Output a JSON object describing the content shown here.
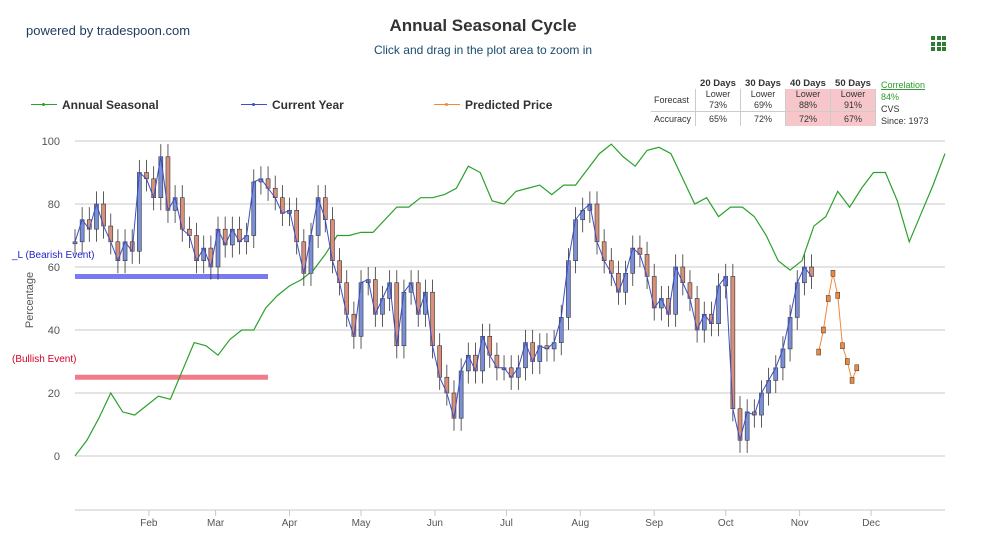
{
  "header": {
    "brand": "powered by tradespoon.com",
    "title": "Annual Seasonal Cycle",
    "subtitle": "Click and drag in the plot area to zoom in"
  },
  "legend": {
    "annual": "Annual Seasonal",
    "current": "Current Year",
    "predicted": "Predicted Price"
  },
  "stats": {
    "headers": [
      "20 Days",
      "30 Days",
      "40 Days",
      "50 Days"
    ],
    "forecast_label": "Forecast",
    "accuracy_label": "Accuracy",
    "forecast": [
      {
        "dir": "Lower",
        "pct": "73%"
      },
      {
        "dir": "Lower",
        "pct": "69%"
      },
      {
        "dir": "Lower",
        "pct": "88%"
      },
      {
        "dir": "Lower",
        "pct": "91%"
      }
    ],
    "accuracy": [
      "65%",
      "72%",
      "72%",
      "67%"
    ],
    "highlight": [
      false,
      false,
      true,
      true
    ]
  },
  "correlation": {
    "label": "Correlation",
    "value": "84%",
    "ticker": "CVS",
    "since": "Since: 1973"
  },
  "events": {
    "bearish": "_L (Bearish Event)",
    "bullish": "(Bullish Event)"
  },
  "colors": {
    "annual": "#2ca02c",
    "current": "#3b4fc4",
    "predicted": "#f0883a",
    "bearish": "#7a7af0",
    "bullish": "#f27a8a",
    "candle_up": "#7a8fd8",
    "candle_down": "#d9907a"
  },
  "chart_data": {
    "type": "line",
    "ylabel": "Percentage",
    "ylim": [
      -15,
      100
    ],
    "yticks": [
      0,
      20,
      40,
      60,
      80,
      100
    ],
    "x_range": [
      0,
      365
    ],
    "month_ticks": [
      {
        "label": "Feb",
        "day": 31
      },
      {
        "label": "Mar",
        "day": 59
      },
      {
        "label": "Apr",
        "day": 90
      },
      {
        "label": "May",
        "day": 120
      },
      {
        "label": "Jun",
        "day": 151
      },
      {
        "label": "Jul",
        "day": 181
      },
      {
        "label": "Aug",
        "day": 212
      },
      {
        "label": "Sep",
        "day": 243
      },
      {
        "label": "Oct",
        "day": 273
      },
      {
        "label": "Nov",
        "day": 304
      },
      {
        "label": "Dec",
        "day": 334
      }
    ],
    "annual_seasonal": {
      "x": [
        0,
        5,
        10,
        15,
        20,
        25,
        30,
        35,
        40,
        45,
        50,
        55,
        60,
        65,
        70,
        75,
        80,
        85,
        90,
        95,
        100,
        105,
        110,
        115,
        120,
        125,
        130,
        135,
        140,
        145,
        150,
        155,
        160,
        165,
        170,
        175,
        180,
        185,
        190,
        195,
        200,
        205,
        210,
        215,
        220,
        225,
        230,
        235,
        240,
        245,
        250,
        255,
        260,
        265,
        270,
        275,
        280,
        285,
        290,
        295,
        300,
        305,
        310,
        315,
        320,
        325,
        330,
        335,
        340,
        345,
        350,
        355,
        360,
        365
      ],
      "y": [
        0,
        5,
        12,
        20,
        14,
        13,
        16,
        19,
        18,
        27,
        36,
        35,
        32,
        37,
        40,
        40,
        47,
        51,
        54,
        56,
        59,
        64,
        70,
        70,
        71,
        71,
        75,
        79,
        79,
        82,
        82,
        83,
        85,
        92,
        90,
        81,
        80,
        84,
        85,
        86,
        83,
        86,
        86,
        91,
        96,
        99,
        95,
        92,
        97,
        98,
        96,
        88,
        80,
        82,
        76,
        79,
        79,
        76,
        70,
        62,
        59,
        62,
        73,
        76,
        84,
        79,
        85,
        90,
        90,
        81,
        68,
        77,
        86,
        96
      ]
    },
    "current_year": {
      "x": [
        0,
        3,
        6,
        9,
        12,
        15,
        18,
        21,
        24,
        27,
        30,
        33,
        36,
        39,
        42,
        45,
        48,
        51,
        54,
        57,
        60,
        63,
        66,
        69,
        72,
        75,
        78,
        81,
        84,
        87,
        90,
        93,
        96,
        99,
        102,
        105,
        108,
        111,
        114,
        117,
        120,
        123,
        126,
        129,
        132,
        135,
        138,
        141,
        144,
        147,
        150,
        153,
        156,
        159,
        162,
        165,
        168,
        171,
        174,
        177,
        180,
        183,
        186,
        189,
        192,
        195,
        198,
        201,
        204,
        207,
        210,
        213,
        216,
        219,
        222,
        225,
        228,
        231,
        234,
        237,
        240,
        243,
        246,
        249,
        252,
        255,
        258,
        261,
        264,
        267,
        270,
        273,
        276,
        279,
        282,
        285,
        288,
        291,
        294,
        297,
        300,
        303,
        306,
        309
      ],
      "y": [
        68,
        75,
        72,
        80,
        73,
        68,
        62,
        68,
        65,
        90,
        88,
        82,
        95,
        78,
        82,
        72,
        70,
        62,
        66,
        60,
        72,
        67,
        72,
        68,
        70,
        87,
        88,
        85,
        82,
        77,
        78,
        68,
        58,
        70,
        82,
        75,
        62,
        55,
        45,
        38,
        55,
        56,
        45,
        50,
        55,
        35,
        52,
        55,
        45,
        52,
        35,
        25,
        20,
        12,
        27,
        32,
        27,
        38,
        32,
        28,
        28,
        25,
        28,
        36,
        30,
        35,
        34,
        36,
        44,
        62,
        75,
        78,
        80,
        68,
        62,
        58,
        52,
        58,
        66,
        64,
        57,
        47,
        50,
        45,
        60,
        55,
        50,
        40,
        45,
        42,
        54,
        57,
        15,
        5,
        14,
        13,
        20,
        24,
        28,
        34,
        44,
        55,
        60,
        57
      ]
    },
    "predicted_price": {
      "x": [
        312,
        314,
        316,
        318,
        320,
        322,
        324,
        326,
        328
      ],
      "y": [
        33,
        40,
        50,
        58,
        51,
        35,
        30,
        24,
        28
      ]
    },
    "bearish_event_level": 57,
    "bullish_event_level": 25
  }
}
